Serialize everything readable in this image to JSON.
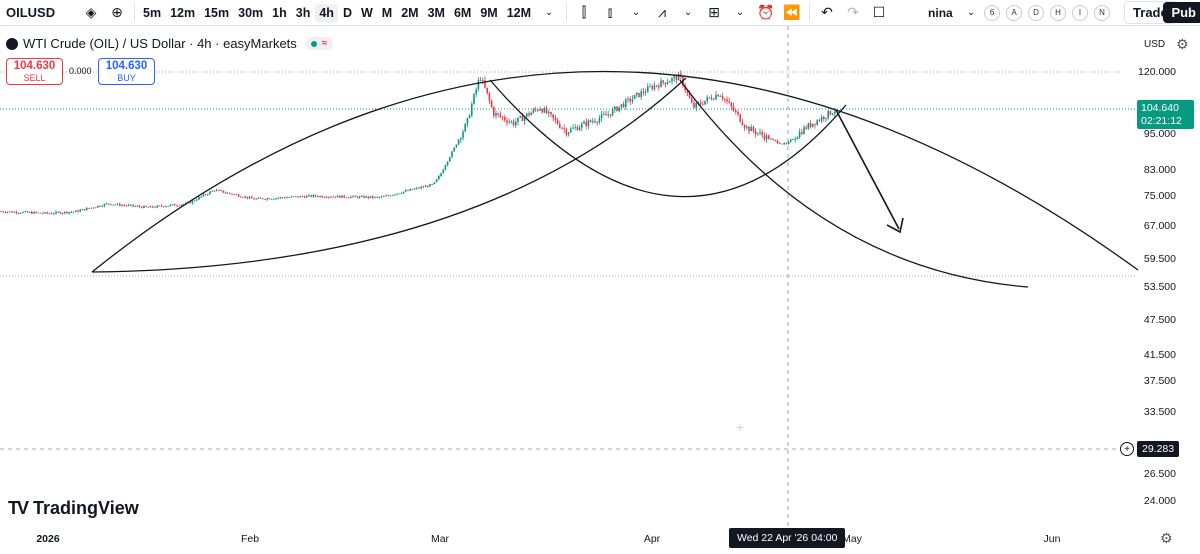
{
  "toolbar": {
    "symbol": "OILUSD",
    "intervals": [
      "5m",
      "12m",
      "15m",
      "30m",
      "1h",
      "3h",
      "4h",
      "D",
      "W",
      "M",
      "2M",
      "3M",
      "6M",
      "9M",
      "12M"
    ],
    "active_interval": "4h",
    "user": "nina",
    "letters": [
      "6",
      "A",
      "D",
      "H",
      "I",
      "N"
    ],
    "trade_label": "Trade",
    "publish_label": "Pub"
  },
  "legend": {
    "title": "WTI Crude (OIL) / US Dollar · 4h · easyMarkets",
    "status_wave": "≈"
  },
  "order": {
    "sell_price": "104.630",
    "sell_label": "SELL",
    "spread": "0.000",
    "buy_price": "104.630",
    "buy_label": "BUY"
  },
  "axis": {
    "currency": "USD",
    "current_price": "104.640",
    "countdown": "02:21:12",
    "crosshair_price": "29.283",
    "crosshair_time": "Wed 22 Apr '26   04:00"
  },
  "colors": {
    "up": "#089981",
    "down": "#f23645",
    "line": "#131722",
    "tag": "#089981"
  },
  "chart_data": {
    "type": "candlestick",
    "price_ticks": [
      "120.000",
      "95.000",
      "83.000",
      "75.000",
      "67.000",
      "59.500",
      "53.500",
      "47.500",
      "41.500",
      "37.500",
      "33.500",
      "26.500",
      "24.000"
    ],
    "time_ticks": [
      "2026",
      "Feb",
      "Mar",
      "Apr",
      "May",
      "Jun"
    ],
    "close_path": [
      [
        "2025-12-10",
        58.5
      ],
      [
        "2025-12-20",
        58.0
      ],
      [
        "2026-01-01",
        57.0
      ],
      [
        "2026-01-05",
        57.5
      ],
      [
        "2026-01-10",
        60.0
      ],
      [
        "2026-01-16",
        58.8
      ],
      [
        "2026-01-22",
        60.0
      ],
      [
        "2026-01-26",
        64.5
      ],
      [
        "2026-02-01",
        61.5
      ],
      [
        "2026-02-10",
        62.5
      ],
      [
        "2026-02-20",
        62.0
      ],
      [
        "2026-02-28",
        66.5
      ],
      [
        "2026-03-01",
        70.0
      ],
      [
        "2026-03-03",
        80.0
      ],
      [
        "2026-03-05",
        92.0
      ],
      [
        "2026-03-07",
        118.0
      ],
      [
        "2026-03-09",
        97.0
      ],
      [
        "2026-03-12",
        92.0
      ],
      [
        "2026-03-16",
        100.0
      ],
      [
        "2026-03-20",
        88.0
      ],
      [
        "2026-03-26",
        96.0
      ],
      [
        "2026-04-02",
        112.0
      ],
      [
        "2026-04-06",
        118.0
      ],
      [
        "2026-04-08",
        100.0
      ],
      [
        "2026-04-12",
        108.0
      ],
      [
        "2026-04-16",
        90.0
      ],
      [
        "2026-04-20",
        84.0
      ],
      [
        "2026-04-22",
        82.0
      ],
      [
        "2026-04-25",
        90.0
      ],
      [
        "2026-04-30",
        100.0
      ],
      [
        "2026-05-03",
        104.6
      ]
    ]
  }
}
